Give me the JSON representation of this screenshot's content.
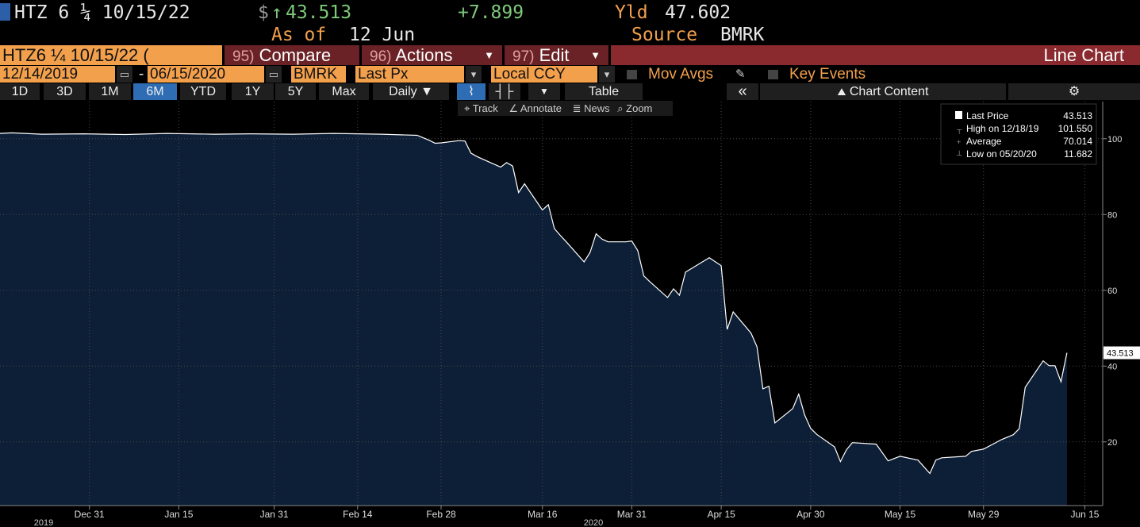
{
  "header": {
    "ticker": "HTZ 6 ¼ 10/15/22",
    "currency": "$",
    "arrow": "↑",
    "price": "43.513",
    "change": "+7.899",
    "yield_label": "Yld",
    "yield": "47.602",
    "as_of_label": "As of",
    "as_of": "12 Jun",
    "source_label": "Source",
    "source": "BMRK"
  },
  "toolbar": {
    "security": "HTZ6 ¼ 10/15/22 (",
    "tabs": [
      {
        "key": "95)",
        "label": "Compare"
      },
      {
        "key": "96)",
        "label": "Actions"
      },
      {
        "key": "97)",
        "label": "Edit"
      }
    ],
    "chart_type": "Line Chart",
    "start_date": "12/14/2019",
    "date_separator": "-",
    "end_date": "06/15/2020",
    "source": "BMRK",
    "field": "Last Px",
    "currency": "Local CCY",
    "mov_avgs": "Mov Avgs",
    "key_events": "Key Events",
    "periods": [
      "1D",
      "3D",
      "1M",
      "6M",
      "YTD",
      "1Y",
      "5Y",
      "Max"
    ],
    "selected_period": "6M",
    "frequency": "Daily",
    "table": "Table",
    "collapse": "«",
    "chart_content": "Chart Content",
    "tools": [
      "Track",
      "Annotate",
      "News",
      "Zoom"
    ]
  },
  "chart_data": {
    "type": "area",
    "xlim": [
      "2019-12-16",
      "2020-06-18"
    ],
    "ylim": [
      3.2,
      109.8
    ],
    "yticks": [
      20,
      40,
      60,
      80,
      100
    ],
    "xticks": [
      {
        "value": "2019-12-31",
        "label": "Dec 31"
      },
      {
        "value": "2020-01-15",
        "label": "Jan 15"
      },
      {
        "value": "2020-01-31",
        "label": "Jan 31"
      },
      {
        "value": "2020-02-14",
        "label": "Feb 14"
      },
      {
        "value": "2020-02-28",
        "label": "Feb 28"
      },
      {
        "value": "2020-03-16",
        "label": "Mar 16"
      },
      {
        "value": "2020-03-31",
        "label": "Mar 31"
      },
      {
        "value": "2020-04-15",
        "label": "Apr 15"
      },
      {
        "value": "2020-04-30",
        "label": "Apr 30"
      },
      {
        "value": "2020-05-15",
        "label": "May 15"
      },
      {
        "value": "2020-05-29",
        "label": "May 29"
      },
      {
        "value": "2020-06-15",
        "label": "Jun 15"
      }
    ],
    "year_labels": [
      "2019",
      "2020"
    ],
    "grid": true,
    "series": [
      {
        "name": "Last Price",
        "color": "#ffffff",
        "area_color": "#0d1f37",
        "x": [
          "2019-12-16",
          "2019-12-18",
          "2019-12-23",
          "2019-12-30",
          "2020-01-06",
          "2020-01-13",
          "2020-01-21",
          "2020-01-27",
          "2020-02-03",
          "2020-02-10",
          "2020-02-18",
          "2020-02-24",
          "2020-02-26",
          "2020-02-27",
          "2020-02-28",
          "2020-03-02",
          "2020-03-03",
          "2020-03-04",
          "2020-03-05",
          "2020-03-06",
          "2020-03-09",
          "2020-03-10",
          "2020-03-11",
          "2020-03-12",
          "2020-03-13",
          "2020-03-16",
          "2020-03-17",
          "2020-03-18",
          "2020-03-19",
          "2020-03-20",
          "2020-03-23",
          "2020-03-24",
          "2020-03-25",
          "2020-03-26",
          "2020-03-27",
          "2020-03-30",
          "2020-03-31",
          "2020-04-01",
          "2020-04-02",
          "2020-04-03",
          "2020-04-06",
          "2020-04-07",
          "2020-04-08",
          "2020-04-09",
          "2020-04-13",
          "2020-04-15",
          "2020-04-16",
          "2020-04-17",
          "2020-04-20",
          "2020-04-21",
          "2020-04-22",
          "2020-04-23",
          "2020-04-24",
          "2020-04-27",
          "2020-04-28",
          "2020-04-29",
          "2020-04-30",
          "2020-05-01",
          "2020-05-04",
          "2020-05-05",
          "2020-05-06",
          "2020-05-07",
          "2020-05-11",
          "2020-05-13",
          "2020-05-15",
          "2020-05-18",
          "2020-05-20",
          "2020-05-21",
          "2020-05-22",
          "2020-05-26",
          "2020-05-27",
          "2020-05-29",
          "2020-06-01",
          "2020-06-03",
          "2020-06-04",
          "2020-06-05",
          "2020-06-08",
          "2020-06-09",
          "2020-06-10",
          "2020-06-11",
          "2020-06-12"
        ],
        "values": [
          101.4,
          101.55,
          101.2,
          101.3,
          101.1,
          101.4,
          101.2,
          101.3,
          101.2,
          101.4,
          101.2,
          100.9,
          99.6,
          98.8,
          98.9,
          99.5,
          99.4,
          96.2,
          95.3,
          94.6,
          92.5,
          93.7,
          92.8,
          85.8,
          88.1,
          81.2,
          82.6,
          76.3,
          74.5,
          72.8,
          67.5,
          70.0,
          74.9,
          73.5,
          72.8,
          72.8,
          73.0,
          70.5,
          63.8,
          62.3,
          58.1,
          60.4,
          58.7,
          64.8,
          68.6,
          66.5,
          49.7,
          54.3,
          48.7,
          45.1,
          34.0,
          34.7,
          25.0,
          28.8,
          32.6,
          27.1,
          23.6,
          22.0,
          18.7,
          14.8,
          17.9,
          19.8,
          19.4,
          15.0,
          16.2,
          15.2,
          11.682,
          15.2,
          15.8,
          16.2,
          17.5,
          18.1,
          20.6,
          21.9,
          23.5,
          34.4,
          41.4,
          40.1,
          40.1,
          35.9,
          43.513
        ]
      }
    ],
    "legend": [
      {
        "label": "Last Price",
        "value": 43.513
      },
      {
        "label": "High on 12/18/19",
        "value": 101.55,
        "value_label": "101.550"
      },
      {
        "label": "Average",
        "value": 70.014
      },
      {
        "label": "Low on 05/20/20",
        "value": 11.682
      }
    ]
  }
}
